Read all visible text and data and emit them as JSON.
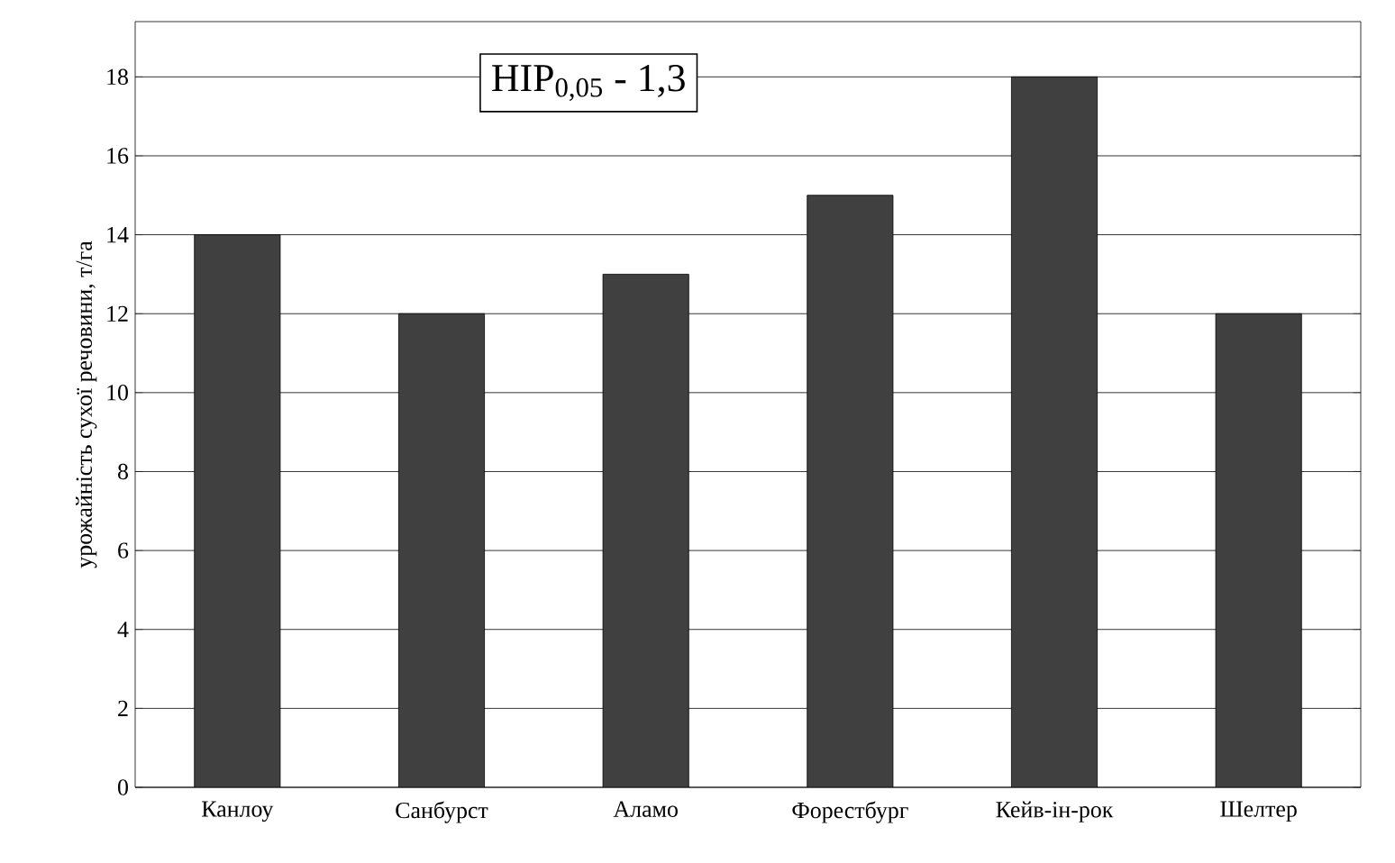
{
  "chart_data": {
    "type": "bar",
    "ylabel": "урожайність сухої речовини, т/га",
    "categories": [
      "Канлоу",
      "Санбурст",
      "Аламо",
      "Форестбург",
      "Кейв-ін-рок",
      "Шелтер"
    ],
    "values": [
      14,
      12,
      13,
      15,
      18,
      12
    ],
    "color": "#404040",
    "ylim": [
      0,
      19.4
    ],
    "yticks": [
      0,
      2,
      4,
      6,
      8,
      10,
      12,
      14,
      16,
      18
    ],
    "grid": "y",
    "annotations": [
      "НІР$_{0,05}$ - 1,3"
    ]
  }
}
